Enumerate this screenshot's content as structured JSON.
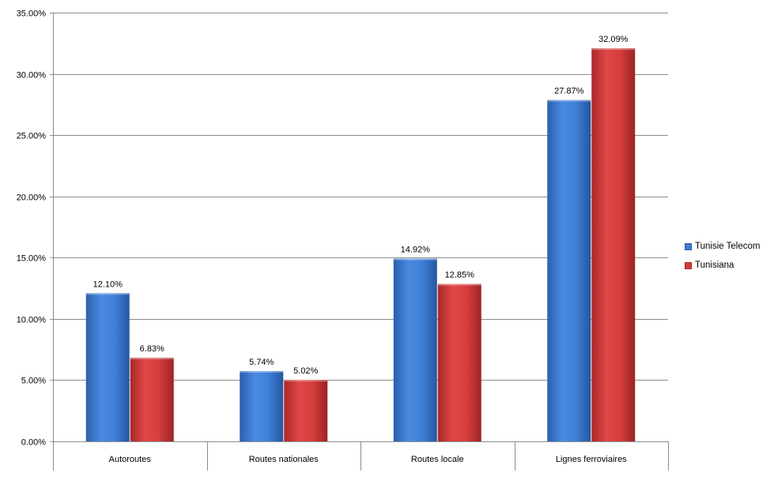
{
  "chart_data": {
    "type": "bar",
    "categories": [
      "Autoroutes",
      "Routes nationales",
      "Routes locale",
      "Lignes ferroviaires"
    ],
    "series": [
      {
        "name": "Tunisie Telecom",
        "values": [
          12.1,
          5.74,
          14.92,
          27.87
        ],
        "labels": [
          "12.10%",
          "5.74%",
          "14.92%",
          "27.87%"
        ],
        "color": "#3C7DD6"
      },
      {
        "name": "Tunisiana",
        "values": [
          6.83,
          5.02,
          12.85,
          32.09
        ],
        "labels": [
          "6.83%",
          "5.02%",
          "12.85%",
          "32.09%"
        ],
        "color": "#D43B3B"
      }
    ],
    "y_ticks": [
      0,
      5,
      10,
      15,
      20,
      25,
      30,
      35
    ],
    "y_tick_labels": [
      "0.00%",
      "5.00%",
      "10.00%",
      "15.00%",
      "20.00%",
      "25.00%",
      "30.00%",
      "35.00%"
    ],
    "ylim": [
      0,
      35
    ],
    "grid": true,
    "legend_position": "right",
    "title": "",
    "xlabel": "",
    "ylabel": ""
  }
}
